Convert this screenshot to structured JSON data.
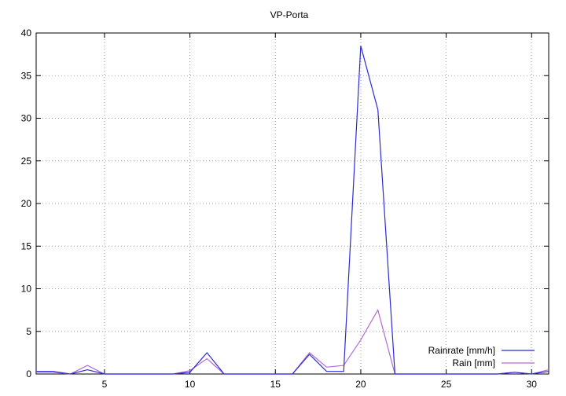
{
  "chart_data": {
    "type": "line",
    "title": "VP-Porta",
    "xlabel": "",
    "ylabel": "",
    "xlim": [
      1,
      31
    ],
    "ylim": [
      0,
      40
    ],
    "xticks": [
      5,
      10,
      15,
      20,
      25,
      30
    ],
    "yticks": [
      0,
      5,
      10,
      15,
      20,
      25,
      30,
      35,
      40
    ],
    "grid": true,
    "legend_position": "bottom-right",
    "x": [
      1,
      2,
      3,
      4,
      5,
      6,
      7,
      8,
      9,
      10,
      11,
      12,
      13,
      14,
      15,
      16,
      17,
      18,
      19,
      20,
      21,
      22,
      23,
      24,
      25,
      26,
      27,
      28,
      29,
      30,
      31
    ],
    "series": [
      {
        "name": "Rainrate [mm/h]",
        "color": "#2a2ad8",
        "values": [
          0.3,
          0.3,
          0,
          0.5,
          0,
          0,
          0,
          0,
          0,
          0.2,
          2.5,
          0,
          0,
          0,
          0,
          0,
          2.3,
          0.3,
          0.3,
          38.5,
          31,
          0,
          0,
          0,
          0,
          0,
          0,
          0,
          0.2,
          0,
          0.3
        ]
      },
      {
        "name": "Rain [mm]",
        "color": "#b36bd8",
        "values": [
          0.2,
          0.2,
          0,
          1.0,
          0,
          0,
          0,
          0,
          0,
          0.4,
          1.8,
          0,
          0,
          0,
          0,
          0,
          2.5,
          0.8,
          1.0,
          4.0,
          7.5,
          0,
          0,
          0,
          0,
          0,
          0,
          0,
          0.2,
          0,
          0.5
        ]
      }
    ]
  }
}
